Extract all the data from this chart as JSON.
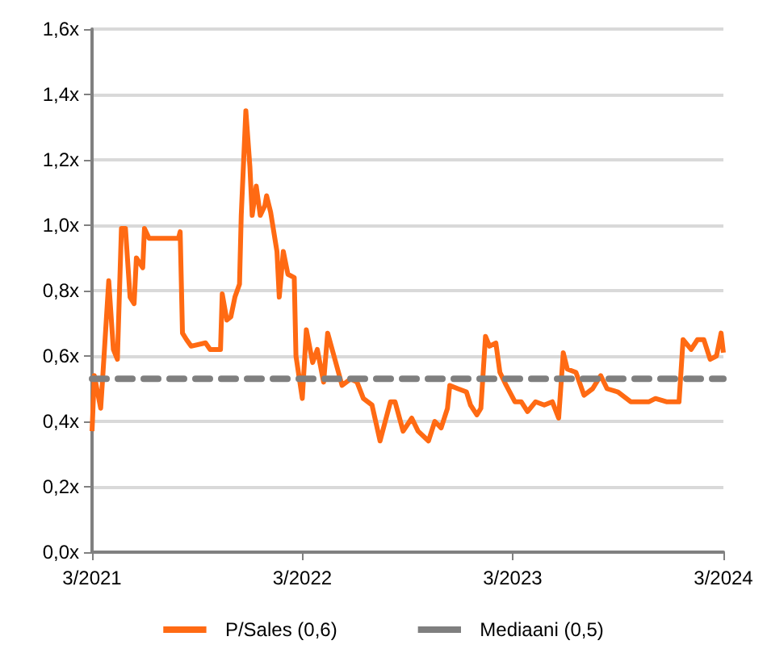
{
  "chart_data": {
    "type": "line",
    "x": [
      "2021-03-01",
      "2021-03-05",
      "2021-03-16",
      "2021-03-19",
      "2021-03-30",
      "2021-04-07",
      "2021-04-14",
      "2021-04-21",
      "2021-04-28",
      "2021-05-06",
      "2021-05-13",
      "2021-05-17",
      "2021-05-28",
      "2021-05-31",
      "2021-06-08",
      "2021-07-29",
      "2021-08-01",
      "2021-08-05",
      "2021-08-12",
      "2021-08-20",
      "2021-09-14",
      "2021-09-22",
      "2021-10-10",
      "2021-10-13",
      "2021-10-21",
      "2021-10-28",
      "2021-11-04",
      "2021-11-12",
      "2021-11-15",
      "2021-11-23",
      "2021-11-30",
      "2021-12-04",
      "2021-12-11",
      "2021-12-18",
      "2021-12-26",
      "2021-12-29",
      "2022-01-05",
      "2022-01-16",
      "2022-01-20",
      "2022-01-27",
      "2022-02-04",
      "2022-02-15",
      "2022-02-18",
      "2022-03-01",
      "2022-03-08",
      "2022-03-19",
      "2022-03-27",
      "2022-04-07",
      "2022-04-14",
      "2022-04-25",
      "2022-05-09",
      "2022-05-24",
      "2022-06-04",
      "2022-06-15",
      "2022-06-30",
      "2022-07-14",
      "2022-08-01",
      "2022-08-09",
      "2022-08-23",
      "2022-09-07",
      "2022-09-18",
      "2022-10-06",
      "2022-10-17",
      "2022-10-28",
      "2022-11-08",
      "2022-11-12",
      "2022-11-26",
      "2022-12-11",
      "2022-12-18",
      "2022-12-29",
      "2023-01-05",
      "2023-01-13",
      "2023-01-20",
      "2023-01-31",
      "2023-02-07",
      "2023-02-18",
      "2023-03-05",
      "2023-03-16",
      "2023-03-27",
      "2023-04-10",
      "2023-04-25",
      "2023-05-09",
      "2023-05-20",
      "2023-05-28",
      "2023-06-04",
      "2023-06-19",
      "2023-07-03",
      "2023-07-18",
      "2023-08-01",
      "2023-08-12",
      "2023-08-31",
      "2023-09-22",
      "2023-10-10",
      "2023-10-24",
      "2023-11-04",
      "2023-11-23",
      "2023-12-15",
      "2023-12-22",
      "2024-01-05",
      "2024-01-16",
      "2024-01-27",
      "2024-02-07",
      "2024-02-18",
      "2024-02-26",
      "2024-03-01"
    ],
    "series": [
      {
        "name": "P/Sales (0,6)",
        "color": "#ff6a13",
        "line_style": "solid",
        "values": [
          0.37,
          0.54,
          0.44,
          0.52,
          0.83,
          0.62,
          0.59,
          0.99,
          0.99,
          0.78,
          0.76,
          0.9,
          0.87,
          0.99,
          0.96,
          0.96,
          0.98,
          0.67,
          0.65,
          0.63,
          0.64,
          0.62,
          0.62,
          0.79,
          0.71,
          0.72,
          0.78,
          0.82,
          1.03,
          1.35,
          1.18,
          1.03,
          1.12,
          1.03,
          1.06,
          1.09,
          1.04,
          0.92,
          0.78,
          0.92,
          0.85,
          0.84,
          0.6,
          0.47,
          0.68,
          0.58,
          0.62,
          0.52,
          0.67,
          0.6,
          0.51,
          0.53,
          0.52,
          0.47,
          0.45,
          0.34,
          0.46,
          0.46,
          0.37,
          0.41,
          0.37,
          0.34,
          0.4,
          0.38,
          0.44,
          0.51,
          0.5,
          0.49,
          0.45,
          0.42,
          0.44,
          0.66,
          0.63,
          0.64,
          0.55,
          0.51,
          0.46,
          0.46,
          0.43,
          0.46,
          0.45,
          0.46,
          0.41,
          0.61,
          0.56,
          0.55,
          0.48,
          0.5,
          0.54,
          0.5,
          0.49,
          0.46,
          0.46,
          0.46,
          0.47,
          0.46,
          0.46,
          0.65,
          0.62,
          0.65,
          0.65,
          0.59,
          0.6,
          0.67,
          0.61
        ]
      },
      {
        "name": "Mediaani (0,5)",
        "color": "#7f7f7f",
        "line_style": "dashed",
        "x": [
          "2021-03-01",
          "2024-03-01"
        ],
        "values": [
          0.53,
          0.53
        ]
      }
    ],
    "xlim": [
      "2021-03-01",
      "2024-03-01"
    ],
    "xticks": [
      {
        "value": "2021-03-01",
        "label": "3/2021"
      },
      {
        "value": "2022-03-01",
        "label": "3/2022"
      },
      {
        "value": "2023-03-01",
        "label": "3/2023"
      },
      {
        "value": "2024-03-01",
        "label": "3/2024"
      }
    ],
    "ylim": [
      0,
      1.6
    ],
    "yticks": [
      {
        "value": 0,
        "label": "0,0x"
      },
      {
        "value": 0.2,
        "label": "0,2x"
      },
      {
        "value": 0.4,
        "label": "0,4x"
      },
      {
        "value": 0.6,
        "label": "0,6x"
      },
      {
        "value": 0.8,
        "label": "0,8x"
      },
      {
        "value": 1.0,
        "label": "1,0x"
      },
      {
        "value": 1.2,
        "label": "1,2x"
      },
      {
        "value": 1.4,
        "label": "1,4x"
      },
      {
        "value": 1.6,
        "label": "1,6x"
      }
    ],
    "grid": "y",
    "legend": "bottom",
    "marker": "none"
  }
}
